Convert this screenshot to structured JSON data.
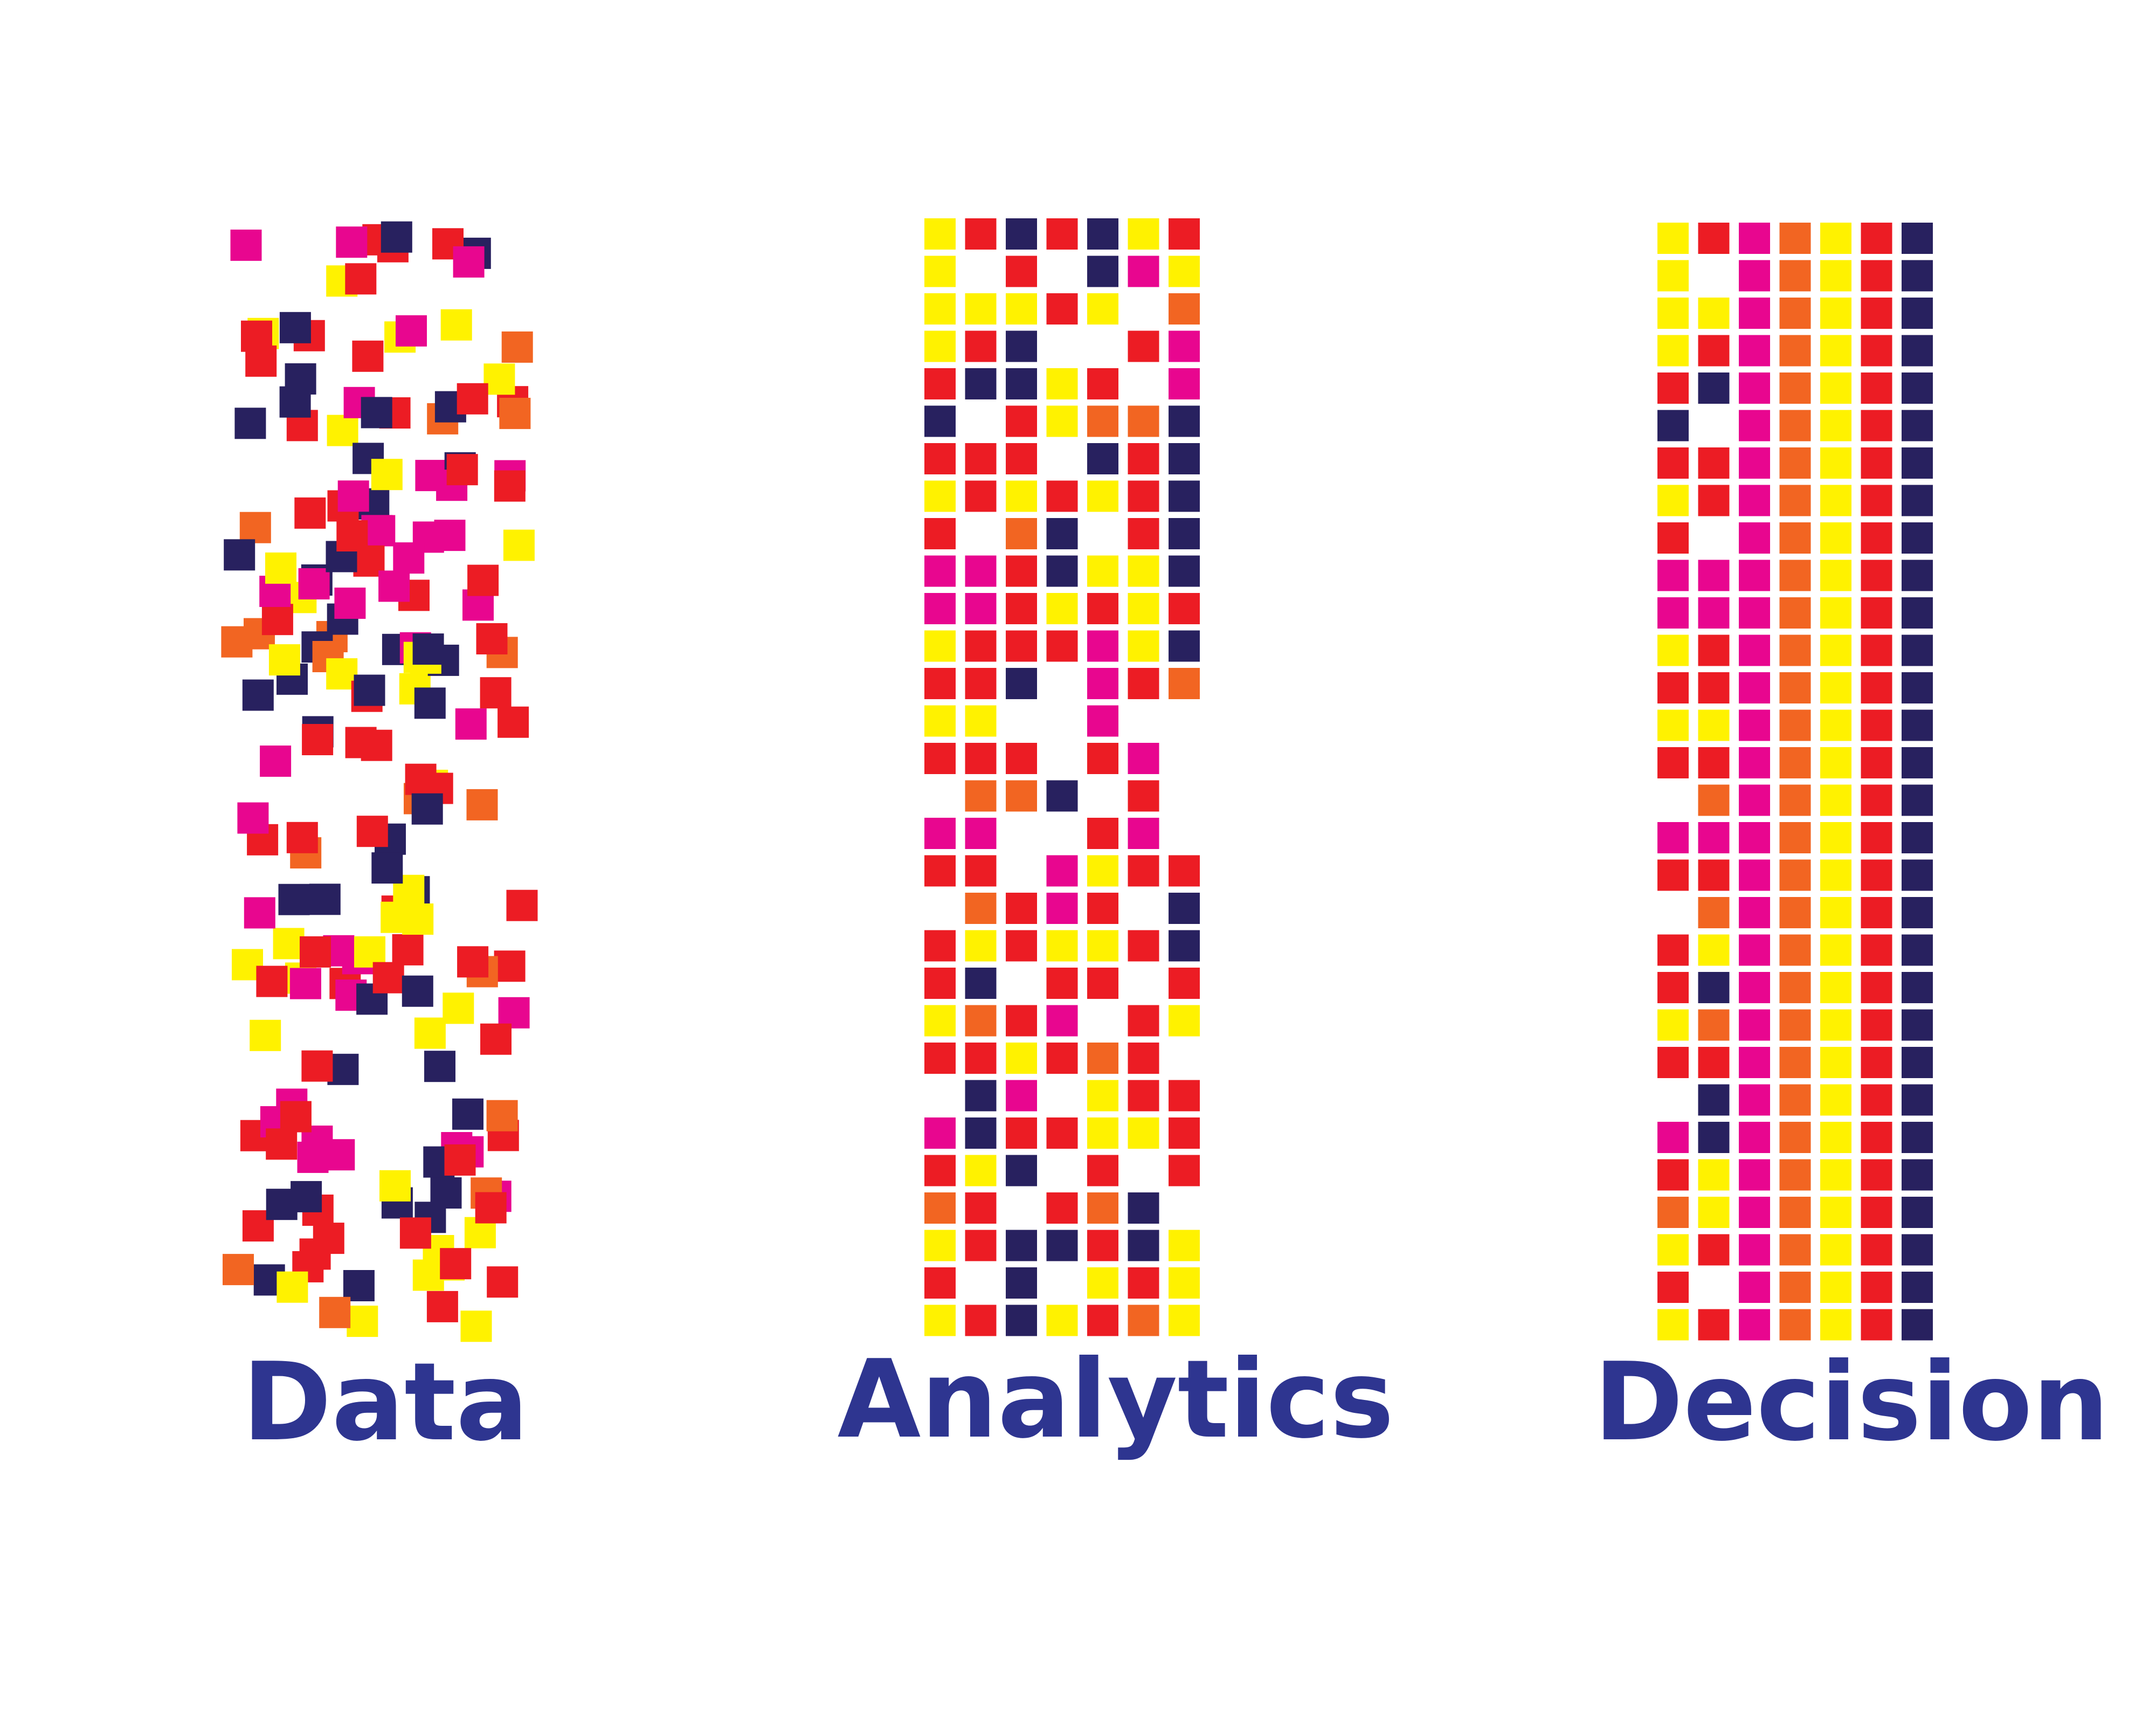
{
  "colors": {
    "navy": "#28215f",
    "magenta": "#e8068f",
    "red": "#ec1c24",
    "orange": "#f26522",
    "yellow": "#fff200",
    "label": "#2e3590"
  },
  "stages": [
    {
      "key": "data",
      "label": "Data",
      "arrangement": "scattered"
    },
    {
      "key": "analytics",
      "label": "Analytics",
      "arrangement": "grid",
      "rows": [
        "YRNRNYR",
        "Y_R_NMY",
        "YYYRY_O",
        "YRN__RM",
        "RNNYR_M",
        "N_RYOON",
        "RRR_NRN",
        "YRYRYRN",
        "R_ON_RN",
        "MMRNYYN",
        "MMRYRYR",
        "YRRRMYN",
        "RRN_MRO",
        "YY__M__",
        "RRR_RM_",
        "_OON_R_",
        "MM__RM_",
        "RR_MYRR",
        "_ORMR_N",
        "RYRYYRN",
        "RN_RR_R",
        "YORM_RY",
        "RRYROR_",
        "_NM_YRR",
        "MNRRYYR",
        "RYN_R_R",
        "OR_RON_",
        "YRNNRNY",
        "R_N_YRY",
        "YRNYROY"
      ]
    },
    {
      "key": "decision",
      "label": "Decision",
      "arrangement": "grid",
      "rows": [
        "YRMOYRN",
        "Y_MOYRN",
        "YYMOYRN",
        "YRMOYRN",
        "RNMOYRN",
        "N_MOYRN",
        "RRMOYRN",
        "YRMOYRN",
        "R_MOYRN",
        "MMMOYRN",
        "MMMOYRN",
        "YRMOYRN",
        "RRMOYRN",
        "YYMOYRN",
        "RRMOYRN",
        "_OMOYRN",
        "MMMOYRN",
        "RRMOYRN",
        "_OMOYRN",
        "RYMOYRN",
        "RNMOYRN",
        "YOMOYRN",
        "RRMOYRN",
        "_NMOYRN",
        "MNMOYRN",
        "RYMOYRN",
        "OYMOYRN",
        "YRMOYRN",
        "R_MOYRN",
        "YRMOYRN"
      ]
    }
  ]
}
